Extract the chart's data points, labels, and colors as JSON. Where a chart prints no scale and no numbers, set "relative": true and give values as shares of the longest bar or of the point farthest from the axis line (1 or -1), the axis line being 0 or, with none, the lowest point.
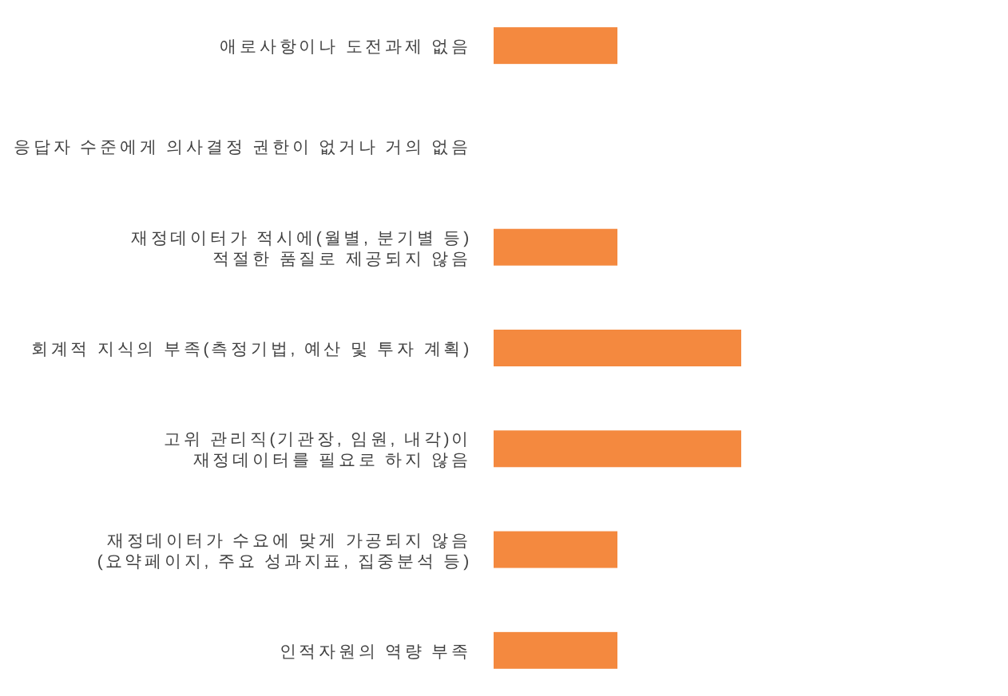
{
  "chart_data": {
    "type": "bar",
    "orientation": "horizontal",
    "relative": true,
    "color": "#f4893f",
    "categories": [
      "애로사항이나 도전과제 없음",
      "응답자 수준에게 의사결정 권한이 없거나 거의 없음",
      "재정데이터가 적시에(월별, 분기별 등)\n적절한 품질로 제공되지 않음",
      "회계적 지식의 부족(측정기법, 예산 및 투자 계획)",
      "고위 관리직(기관장, 임원, 내각)이\n재정데이터를 필요로 하지 않음",
      "재정데이터가 수요에 맞게 가공되지 않음\n(요약페이지, 주요 성과지표, 집중분석 등)",
      "인적자원의 역량 부족"
    ],
    "values": [
      0.5,
      0,
      0.5,
      1,
      1,
      0.5,
      0.5
    ]
  }
}
